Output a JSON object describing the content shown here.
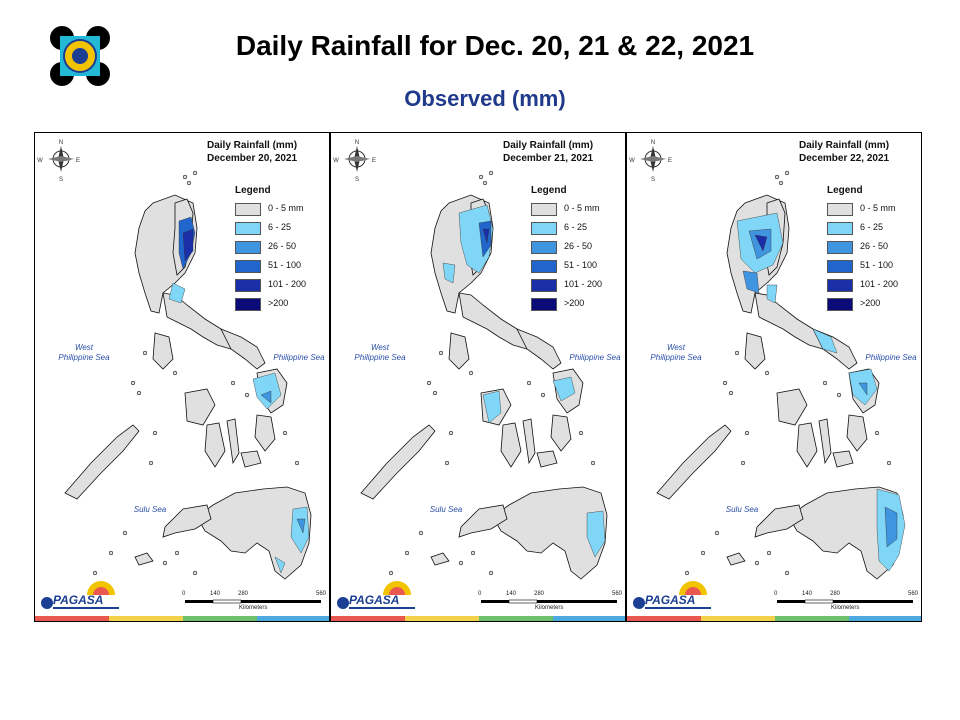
{
  "header": {
    "title": "Daily Rainfall for Dec. 20, 21 & 22, 2021",
    "subtitle": "Observed (mm)"
  },
  "legend": {
    "title": "Legend",
    "classes": [
      {
        "label": "0 - 5 mm",
        "color": "#e0e0e0"
      },
      {
        "label": "6 - 25",
        "color": "#7fd6f7"
      },
      {
        "label": "26 - 50",
        "color": "#3f95e0"
      },
      {
        "label": "51 - 100",
        "color": "#2166cc"
      },
      {
        "label": "101 - 200",
        "color": "#1b2fa8"
      },
      {
        "label": ">200",
        "color": "#0b0a78"
      }
    ]
  },
  "labels": {
    "west_sea": "West\nPhilippine Sea",
    "ph_sea": "Philippine Sea",
    "sulu_sea": "Sulu Sea",
    "scale_0": "0",
    "scale_140": "140",
    "scale_280": "280",
    "scale_560": "560",
    "scale_unit": "Kilometers",
    "brand": "PAGASA",
    "north": "N",
    "south": "S",
    "east": "E",
    "west": "W"
  },
  "panels": [
    {
      "heading": "Daily Rainfall (mm)",
      "date": "December 20, 2021"
    },
    {
      "heading": "Daily Rainfall (mm)",
      "date": "December 21, 2021"
    },
    {
      "heading": "Daily Rainfall (mm)",
      "date": "December 22, 2021"
    }
  ],
  "stripe_colors": [
    "#e9574f",
    "#f3d14a",
    "#6cbf6b",
    "#4ea9df"
  ]
}
